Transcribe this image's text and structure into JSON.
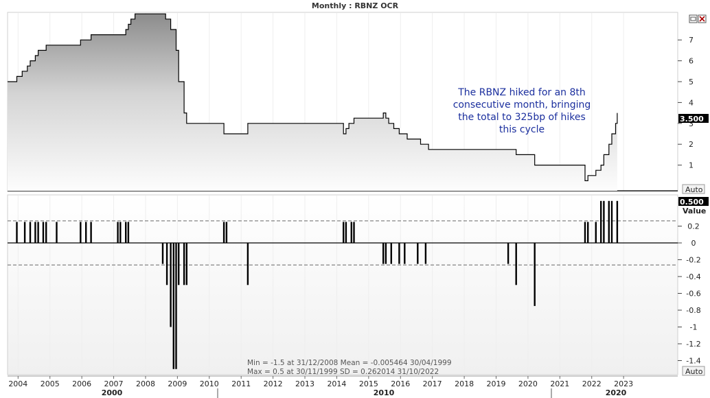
{
  "title": "Monthly : RBNZ OCR",
  "annotation": [
    "The RBNZ hiked for an 8th",
    "consecutive month, bringing",
    "the total to 325bp of hikes",
    "this cycle"
  ],
  "stats": [
    "Min  = -1.5 at 31/12/2008 Mean = -0.005464 30/04/1999",
    "Max = 0.5  at 30/11/1999 SD     = 0.262014  31/10/2022"
  ],
  "value_label": "Value",
  "auto_label": "Auto",
  "colors": {
    "line": "#000000",
    "anno": "#1b2f9e",
    "tag": "#000000"
  },
  "chart_data": [
    {
      "type": "area",
      "name": "RBNZ OCR",
      "last_value_tag": "3.500",
      "ylim": [
        0,
        8.5
      ],
      "yticks": [
        "1",
        "2",
        "3",
        "4",
        "5",
        "6",
        "7"
      ],
      "x_years": [
        "2004",
        "2005",
        "2006",
        "2007",
        "2008",
        "2009",
        "2010",
        "2011",
        "2012",
        "2013",
        "2014",
        "2015",
        "2016",
        "2017",
        "2018",
        "2019",
        "2020",
        "2021",
        "2022",
        "2023"
      ],
      "x_eras": [
        "2000",
        "2010",
        "2020"
      ],
      "x": [
        2003.67,
        2003.96,
        2004.13,
        2004.29,
        2004.38,
        2004.54,
        2004.63,
        2004.79,
        2004.88,
        2005.21,
        2005.96,
        2006.29,
        2007.21,
        2007.38,
        2007.46,
        2007.54,
        2007.67,
        2008.54,
        2008.63,
        2008.79,
        2008.96,
        2009.04,
        2009.21,
        2009.29,
        2010.46,
        2010.63,
        2011.21,
        2014.21,
        2014.29,
        2014.38,
        2014.54,
        2015.46,
        2015.54,
        2015.63,
        2015.79,
        2015.96,
        2016.21,
        2016.63,
        2016.88,
        2019.38,
        2019.63,
        2020.21,
        2021.79,
        2021.88,
        2022.13,
        2022.29,
        2022.38,
        2022.54,
        2022.63,
        2022.75,
        2022.8
      ],
      "y": [
        5.0,
        5.25,
        5.5,
        5.75,
        6.0,
        6.25,
        6.5,
        6.5,
        6.75,
        6.75,
        7.0,
        7.25,
        7.25,
        7.5,
        7.75,
        8.0,
        8.25,
        8.25,
        8.0,
        7.5,
        6.5,
        5.0,
        3.5,
        3.0,
        2.5,
        2.5,
        3.0,
        2.5,
        2.75,
        3.0,
        3.25,
        3.5,
        3.25,
        3.0,
        2.75,
        2.5,
        2.25,
        2.0,
        1.75,
        1.75,
        1.5,
        1.0,
        0.25,
        0.5,
        0.75,
        1.0,
        1.5,
        2.0,
        2.5,
        3.0,
        3.5
      ]
    },
    {
      "type": "bar",
      "name": "Value",
      "last_value_tag": "0.500",
      "ylim": [
        -1.5,
        0.5
      ],
      "yticks": [
        "0.2",
        "0",
        "-0.2",
        "-0.4",
        "-0.6",
        "-0.8",
        "-1",
        "-1.2",
        "-1.4"
      ],
      "sd_lines": [
        0.262014,
        -0.262014
      ],
      "x": [
        2003.96,
        2004.21,
        2004.38,
        2004.54,
        2004.63,
        2004.79,
        2004.88,
        2005.21,
        2005.96,
        2006.13,
        2006.29,
        2007.13,
        2007.21,
        2007.38,
        2007.46,
        2008.54,
        2008.67,
        2008.79,
        2008.88,
        2008.96,
        2009.04,
        2009.21,
        2009.29,
        2010.46,
        2010.54,
        2011.21,
        2014.21,
        2014.29,
        2014.46,
        2014.54,
        2015.46,
        2015.54,
        2015.71,
        2015.96,
        2016.13,
        2016.54,
        2016.79,
        2019.38,
        2019.63,
        2020.21,
        2021.79,
        2021.88,
        2022.13,
        2022.29,
        2022.38,
        2022.54,
        2022.63,
        2022.8
      ],
      "values": [
        0.25,
        0.25,
        0.25,
        0.25,
        0.25,
        0.25,
        0.25,
        0.25,
        0.25,
        0.25,
        0.25,
        0.25,
        0.25,
        0.25,
        0.25,
        -0.25,
        -0.5,
        -1.0,
        -1.5,
        -1.5,
        -0.5,
        -0.5,
        -0.5,
        0.25,
        0.25,
        -0.5,
        0.25,
        0.25,
        0.25,
        0.25,
        -0.25,
        -0.25,
        -0.25,
        -0.25,
        -0.25,
        -0.25,
        -0.25,
        -0.25,
        -0.5,
        -0.75,
        0.25,
        0.25,
        0.25,
        0.5,
        0.5,
        0.5,
        0.5,
        0.5
      ]
    }
  ]
}
